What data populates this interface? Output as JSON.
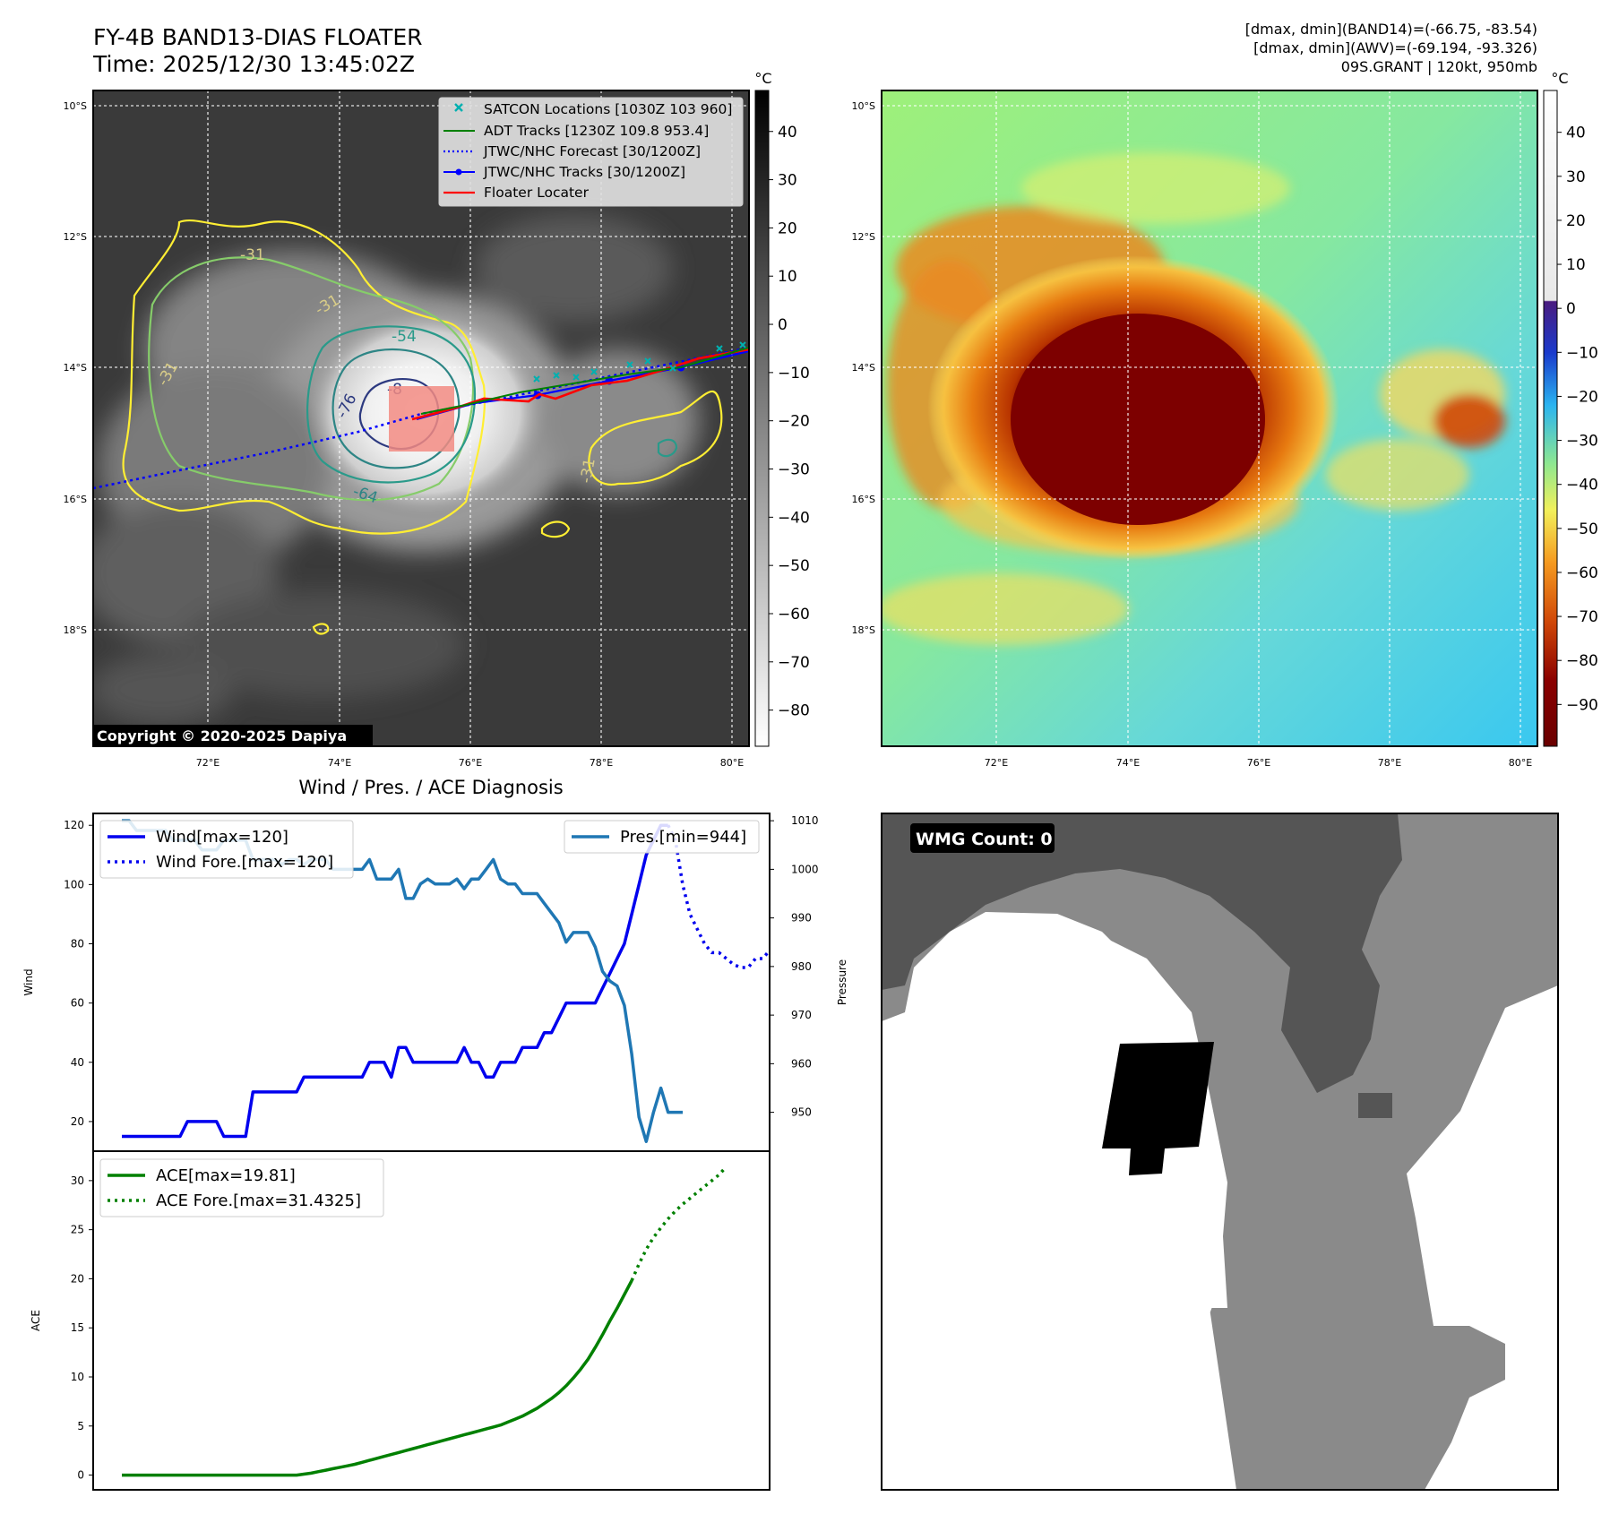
{
  "header": {
    "title": "FY-4B BAND13-DIAS FLOATER",
    "time": "Time: 2025/12/30 13:45:02Z",
    "stats_line1": "[dmax, dmin](BAND14)=(-66.75, -83.54)",
    "stats_line2": "[dmax, dmin](AWV)=(-69.194, -93.326)",
    "storm_line": "09S.GRANT | 120kt, 950mb"
  },
  "copyright": "Copyright © 2020-2025 Dapiya",
  "map": {
    "lon_ticks": [
      "72°E",
      "74°E",
      "76°E",
      "78°E",
      "80°E"
    ],
    "lat_ticks": [
      "10°S",
      "12°S",
      "14°S",
      "16°S",
      "18°S"
    ],
    "contour_labels": [
      "-31",
      "-31",
      "-31",
      "-54",
      "-76",
      "-8",
      "-64",
      "-31"
    ],
    "colors": {
      "background": "#3a3a3a",
      "contour_31": "#ffee33",
      "contour_42": "#86cc6a",
      "contour_54": "#2a9a8a",
      "contour_64": "#2d8585",
      "contour_76": "#2d3a80",
      "track_red": "#ff0000",
      "track_blue": "#0000ff",
      "adt_green": "#008000",
      "satcon": "#00b0b0",
      "locater_box": "#f28b82"
    }
  },
  "legend": {
    "items": [
      {
        "label": "SATCON Locations [1030Z 103 960]",
        "icon": "x-marker-icon"
      },
      {
        "label": "ADT Tracks [1230Z 109.8 953.4]",
        "icon": "green-line-icon"
      },
      {
        "label": "JTWC/NHC Forecast [30/1200Z]",
        "icon": "blue-dotted-line-icon"
      },
      {
        "label": "JTWC/NHC Tracks [30/1200Z]",
        "icon": "blue-line-dot-icon"
      },
      {
        "label": "Floater Locater",
        "icon": "red-line-icon"
      }
    ]
  },
  "colorbar_gray": {
    "unit": "°C",
    "ticks": [
      "40",
      "30",
      "20",
      "10",
      "0",
      "−10",
      "−20",
      "−30",
      "−40",
      "−50",
      "−60",
      "−70",
      "−80"
    ]
  },
  "colorbar_color": {
    "unit": "°C",
    "ticks": [
      "40",
      "30",
      "20",
      "10",
      "0",
      "−10",
      "−20",
      "−30",
      "−40",
      "−50",
      "−60",
      "−70",
      "−80",
      "−90"
    ]
  },
  "wmg": {
    "label": "WMG Count: 0"
  },
  "chart_data": [
    {
      "type": "line",
      "title": "Wind / Pres. / ACE Diagnosis",
      "ylabel": "Wind",
      "ylabel_right": "Pressure",
      "ylim": [
        10,
        124
      ],
      "ylim_right": [
        942.0,
        1011.5
      ],
      "yticks": [
        20,
        40,
        60,
        80,
        100,
        120
      ],
      "yticks_right": [
        950,
        960,
        970,
        980,
        990,
        1000,
        1010
      ],
      "x_points": 86,
      "series": [
        {
          "name": "Wind[max=120]",
          "color": "#0000ee",
          "style": "solid",
          "values": [
            15,
            15,
            15,
            15,
            15,
            15,
            15,
            15,
            15,
            20,
            20,
            20,
            20,
            20,
            15,
            15,
            15,
            15,
            30,
            30,
            30,
            30,
            30,
            30,
            30,
            35,
            35,
            35,
            35,
            35,
            35,
            35,
            35,
            35,
            40,
            40,
            40,
            35,
            45,
            45,
            40,
            40,
            40,
            40,
            40,
            40,
            40,
            45,
            40,
            40,
            35,
            35,
            40,
            40,
            40,
            45,
            45,
            45,
            50,
            50,
            55,
            60,
            60,
            60,
            60,
            60,
            65,
            70,
            75,
            80,
            90,
            100,
            110,
            115,
            120,
            120
          ]
        },
        {
          "name": "Wind Fore.[max=120]",
          "color": "#0000ee",
          "style": "dotted",
          "offset": 75,
          "values": [
            120,
            115,
            100,
            90,
            85,
            80,
            77,
            77,
            75,
            73,
            72,
            72,
            75,
            75,
            78
          ]
        },
        {
          "name": "Pres.[min=944]",
          "color": "#1f77b4",
          "style": "solid",
          "axis": "right",
          "values": [
            1010,
            1010,
            1008,
            1008,
            1008,
            1008,
            1008,
            1006,
            1006,
            1006,
            1006,
            1004,
            1004,
            1004,
            1006,
            1006,
            1006,
            1006,
            1002,
            1002,
            1002,
            1002,
            1001,
            1002,
            1002,
            1001,
            1002,
            1002,
            1002,
            1000,
            1000,
            1000,
            1000,
            1000,
            1002,
            998,
            998,
            998,
            1000,
            994,
            994,
            997,
            998,
            997,
            997,
            997,
            998,
            996,
            998,
            998,
            1000,
            1002,
            998,
            997,
            997,
            995,
            995,
            995,
            993,
            991,
            989,
            985,
            987,
            987,
            987,
            984,
            979,
            977,
            976,
            972,
            962,
            949,
            944,
            950,
            955,
            950,
            950,
            950
          ]
        }
      ]
    },
    {
      "type": "line",
      "ylabel": "ACE",
      "ylim": [
        -1.5,
        33
      ],
      "yticks": [
        0,
        5,
        10,
        15,
        20,
        25,
        30
      ],
      "x_points": 86,
      "series": [
        {
          "name": "ACE[max=19.81]",
          "color": "#008000",
          "style": "solid",
          "values": [
            0,
            0,
            0,
            0,
            0,
            0,
            0,
            0,
            0,
            0,
            0,
            0,
            0,
            0,
            0,
            0,
            0,
            0,
            0,
            0,
            0,
            0,
            0,
            0,
            0,
            0.1,
            0.2,
            0.35,
            0.5,
            0.65,
            0.8,
            0.95,
            1.1,
            1.3,
            1.5,
            1.7,
            1.9,
            2.1,
            2.3,
            2.5,
            2.7,
            2.9,
            3.1,
            3.3,
            3.5,
            3.7,
            3.9,
            4.1,
            4.3,
            4.5,
            4.7,
            4.9,
            5.1,
            5.4,
            5.7,
            6.0,
            6.4,
            6.8,
            7.3,
            7.8,
            8.4,
            9.1,
            9.9,
            10.8,
            11.8,
            13.0,
            14.3,
            15.7,
            17.0,
            18.4,
            19.81
          ]
        },
        {
          "name": "ACE Fore.[max=31.4325]",
          "color": "#008000",
          "style": "dotted",
          "offset": 70,
          "values": [
            19.81,
            21.5,
            23.0,
            24.2,
            25.2,
            26.1,
            26.9,
            27.6,
            28.2,
            28.8,
            29.4,
            30.0,
            30.6,
            31.4325
          ]
        }
      ]
    }
  ]
}
